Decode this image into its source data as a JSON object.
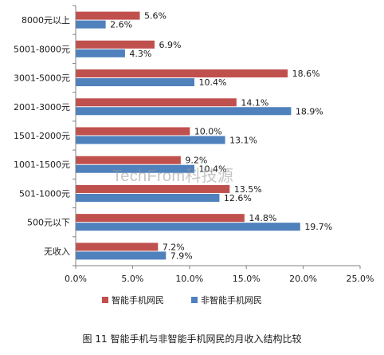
{
  "chart_data": {
    "type": "bar",
    "orientation": "horizontal",
    "categories": [
      "8000元以上",
      "5001-8000元",
      "3001-5000元",
      "2001-3000元",
      "1501-2000元",
      "1001-1500元",
      "501-1000元",
      "500元以下",
      "无收入"
    ],
    "series": [
      {
        "name": "智能手机网民",
        "color": "#c0504d",
        "values": [
          5.6,
          6.9,
          18.6,
          14.1,
          10.0,
          9.2,
          13.5,
          14.8,
          7.2
        ],
        "labels": [
          "5.6%",
          "6.9%",
          "18.6%",
          "14.1%",
          "10.0%",
          "9.2%",
          "13.5%",
          "14.8%",
          "7.2%"
        ]
      },
      {
        "name": "非智能手机网民",
        "color": "#4f81bd",
        "values": [
          2.6,
          4.3,
          10.4,
          18.9,
          13.1,
          10.4,
          12.6,
          19.7,
          7.9
        ],
        "labels": [
          "2.6%",
          "4.3%",
          "10.4%",
          "18.9%",
          "13.1%",
          "10.4%",
          "12.6%",
          "19.7%",
          "7.9%"
        ]
      }
    ],
    "xlim": [
      0,
      25
    ],
    "xticks": [
      "0.0%",
      "5.0%",
      "10.0%",
      "15.0%",
      "20.0%",
      "25.0%"
    ],
    "grid": false,
    "legend_position": "bottom"
  },
  "caption": "图 11 智能手机与非智能手机网民的月收入结构比较",
  "watermark": "TechFrom科技源"
}
